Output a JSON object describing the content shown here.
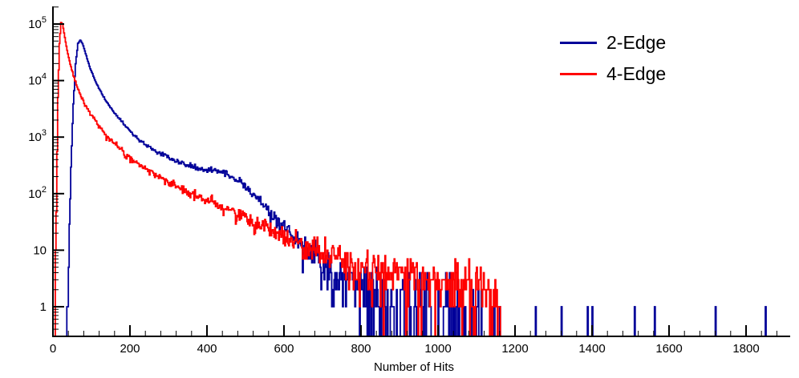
{
  "chart_data": {
    "type": "line",
    "title": "",
    "xlabel": "Number of Hits",
    "ylabel": "",
    "y_scale": "log",
    "x_range": [
      0,
      1915
    ],
    "y_range": [
      0.3,
      205000
    ],
    "x_major_ticks": [
      0,
      200,
      400,
      600,
      800,
      1000,
      1200,
      1400,
      1600,
      1800
    ],
    "x_minor_step": 40,
    "y_major_ticks": [
      1,
      10,
      100,
      1000,
      10000,
      100000
    ],
    "y_tick_labels": [
      "1",
      "10",
      "10^2",
      "10^3",
      "10^4",
      "10^5"
    ],
    "legend": {
      "position": "top-right",
      "entries": [
        "2-Edge",
        "4-Edge"
      ]
    },
    "series": [
      {
        "name": "2-Edge",
        "color": "#000099",
        "seed": 7,
        "noise_k": 1.2,
        "x_end": 1160,
        "envelope": [
          [
            34,
            0.4
          ],
          [
            40,
            8
          ],
          [
            46,
            300
          ],
          [
            52,
            4000
          ],
          [
            58,
            20000
          ],
          [
            64,
            45000
          ],
          [
            70,
            52000
          ],
          [
            76,
            45000
          ],
          [
            84,
            30000
          ],
          [
            95,
            17000
          ],
          [
            110,
            9500
          ],
          [
            130,
            5200
          ],
          [
            150,
            3200
          ],
          [
            175,
            2000
          ],
          [
            200,
            1250
          ],
          [
            230,
            820
          ],
          [
            260,
            600
          ],
          [
            300,
            450
          ],
          [
            340,
            330
          ],
          [
            380,
            280
          ],
          [
            420,
            260
          ],
          [
            450,
            230
          ],
          [
            480,
            170
          ],
          [
            510,
            115
          ],
          [
            540,
            70
          ],
          [
            570,
            42
          ],
          [
            600,
            26
          ],
          [
            630,
            15
          ],
          [
            660,
            9
          ],
          [
            700,
            5
          ],
          [
            740,
            3
          ],
          [
            800,
            1.8
          ],
          [
            860,
            1.2
          ],
          [
            920,
            0.9
          ],
          [
            1000,
            0.6
          ],
          [
            1080,
            0.45
          ],
          [
            1160,
            0.35
          ]
        ],
        "tail_spikes": [
          [
            1253,
            1
          ],
          [
            1320,
            1
          ],
          [
            1388,
            1
          ],
          [
            1400,
            1
          ],
          [
            1510,
            1
          ],
          [
            1562,
            1
          ],
          [
            1720,
            1
          ],
          [
            1850,
            1
          ]
        ]
      },
      {
        "name": "4-Edge",
        "color": "#ff0000",
        "seed": 13,
        "noise_k": 2.2,
        "x_end": 1160,
        "envelope": [
          [
            4,
            0.4
          ],
          [
            8,
            60
          ],
          [
            12,
            5000
          ],
          [
            16,
            45000
          ],
          [
            20,
            105000
          ],
          [
            24,
            100000
          ],
          [
            28,
            70000
          ],
          [
            34,
            40000
          ],
          [
            42,
            22000
          ],
          [
            50,
            14000
          ],
          [
            60,
            8500
          ],
          [
            72,
            5200
          ],
          [
            85,
            3400
          ],
          [
            100,
            2300
          ],
          [
            120,
            1450
          ],
          [
            140,
            1000
          ],
          [
            165,
            680
          ],
          [
            200,
            430
          ],
          [
            240,
            270
          ],
          [
            280,
            185
          ],
          [
            320,
            135
          ],
          [
            360,
            100
          ],
          [
            400,
            75
          ],
          [
            450,
            52
          ],
          [
            500,
            37
          ],
          [
            550,
            26
          ],
          [
            600,
            18
          ],
          [
            650,
            13
          ],
          [
            700,
            9
          ],
          [
            760,
            6.5
          ],
          [
            820,
            5
          ],
          [
            880,
            4
          ],
          [
            950,
            3.2
          ],
          [
            1020,
            2.6
          ],
          [
            1080,
            2.2
          ],
          [
            1130,
            1.6
          ],
          [
            1160,
            1.0
          ]
        ],
        "tail_spikes": []
      }
    ]
  }
}
